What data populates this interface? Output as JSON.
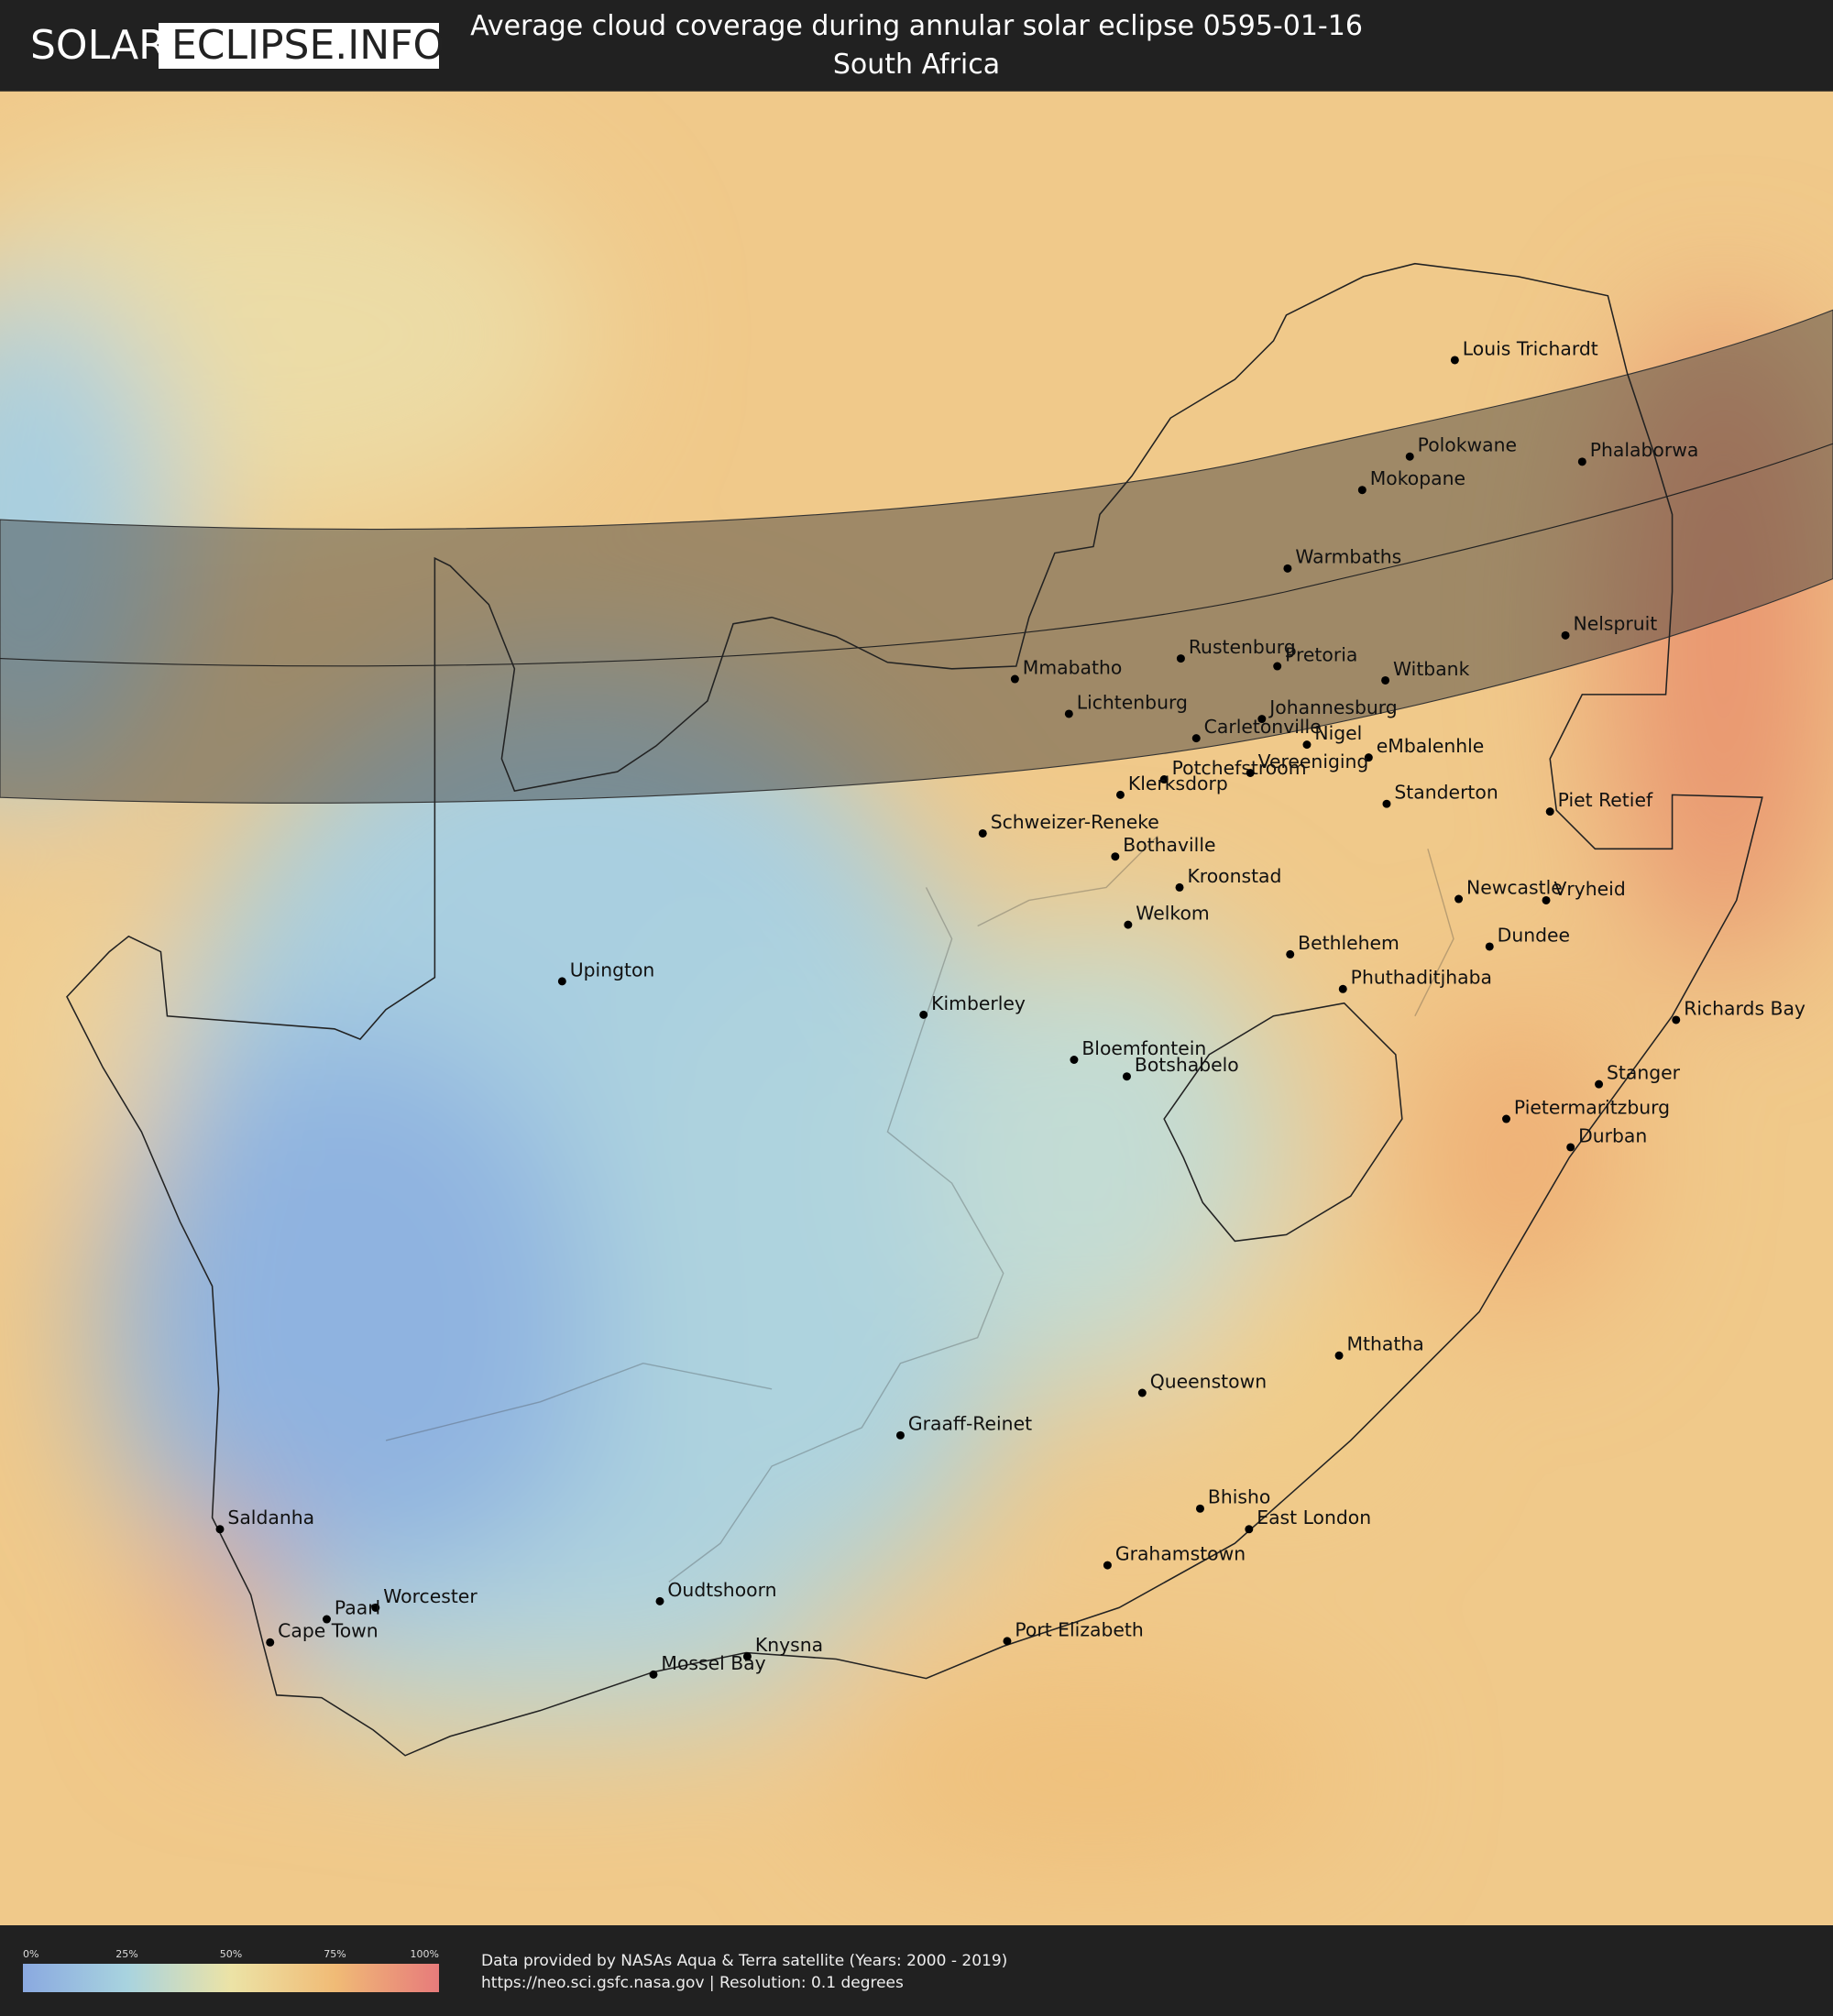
{
  "header": {
    "logo": [
      "SOLAR",
      "ECLIPSE.INFO"
    ],
    "title": "Average cloud coverage during annular solar eclipse 0595-01-16",
    "subtitle": "South Africa"
  },
  "cities": [
    "Louis Trichardt",
    "Polokwane",
    "Phalaborwa",
    "Mokopane",
    "Warmbaths",
    "Nelspruit",
    "Mmabatho",
    "Rustenburg",
    "Pretoria",
    "Witbank",
    "Lichtenburg",
    "Johannesburg",
    "Carletonville",
    "Nigel",
    "eMbalenhle",
    "Potchefstroom",
    "Vereeniging",
    "Klerksdorp",
    "Standerton",
    "Piet Retief",
    "Schweizer-Reneke",
    "Bothaville",
    "Kroonstad",
    "Welkom",
    "Newcastle",
    "Vryheid",
    "Dundee",
    "Bethlehem",
    "Phuthaditjhaba",
    "Upington",
    "Kimberley",
    "Richards Bay",
    "Bloemfontein",
    "Botshabelo",
    "Stanger",
    "Pietermaritzburg",
    "Durban",
    "Mthatha",
    "Queenstown",
    "Graaff-Reinet",
    "Bhisho",
    "East London",
    "Grahamstown",
    "Saldanha",
    "Worcester",
    "Oudtshoorn",
    "Paarl",
    "Cape Town",
    "Port Elizabeth",
    "Knysna",
    "Mossel Bay"
  ],
  "legend": {
    "ticks": [
      "0%",
      "25%",
      "50%",
      "75%",
      "100%"
    ]
  },
  "footer": {
    "lines": [
      "Data provided by NASAs Aqua & Terra satellite (Years: 2000 - 2019)",
      "https://neo.sci.gsfc.nasa.gov | Resolution: 0.1 degrees"
    ]
  }
}
